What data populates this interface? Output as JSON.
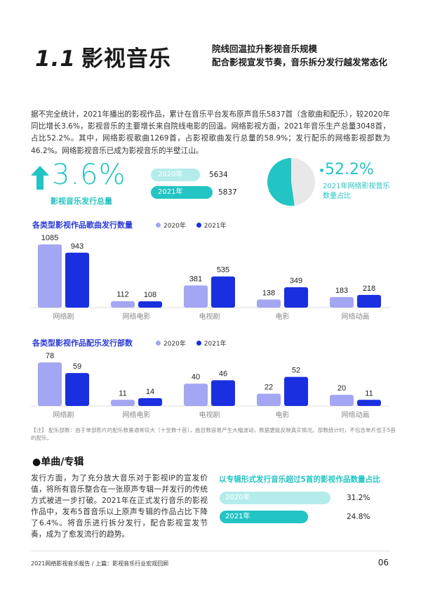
{
  "header": {
    "section_number": "1.1",
    "section_title": "影视音乐",
    "subtitle_line1": "院线回温拉升影视音乐规模",
    "subtitle_line2": "配合影视宣发节奏，音乐拆分发行越发常态化"
  },
  "intro": "据不完全统计，2021年播出的影视作品，累计在音乐平台发布原声音乐5837首（含歌曲和配乐），较2020年同比增长3.6%，影视音乐的主要增长来自院线电影的回温。网络影视方面，2021年音乐生产总量3048首，占比52.2%。其中，网络影视歌曲1269首，占影视歌曲发行总量的58.9%；发行配乐的网络影视部数为46.2%。网络影视音乐已成为影视音乐的半壁江山。",
  "highlight": {
    "growth_value": "3.6%",
    "growth_label": "影视音乐发行总量",
    "icon": "up-arrow-icon",
    "bars": [
      {
        "label": "2020年",
        "value": "5634",
        "amount": 5634
      },
      {
        "label": "2021年",
        "value": "5837",
        "amount": 5837
      }
    ],
    "pie_value": "52.2%",
    "pie_fraction": 0.522,
    "pie_label_line1": "2021年网络影视音乐",
    "pie_label_line2": "数量占比"
  },
  "colors": {
    "teal": "#22c4c4",
    "teal_light": "#b4ecec",
    "series_2020": "#a3a6f2",
    "series_2021": "#1a2fe0",
    "chart_title": "#2b3bd6"
  },
  "chart_data": [
    {
      "type": "bar",
      "title": "各类型影视作品歌曲发行数量",
      "categories": [
        "网络剧",
        "网络电影",
        "电视剧",
        "电影",
        "网络动画"
      ],
      "series": [
        {
          "name": "2020年",
          "values": [
            1085,
            112,
            381,
            138,
            183
          ]
        },
        {
          "name": "2021年",
          "values": [
            943,
            108,
            535,
            349,
            218
          ]
        }
      ],
      "legend_position": "top-right"
    },
    {
      "type": "bar",
      "title": "各类型影视作品配乐发行部数",
      "categories": [
        "网络剧",
        "网络电影",
        "电视剧",
        "电影",
        "网络动画"
      ],
      "series": [
        {
          "name": "2020年",
          "values": [
            78,
            11,
            40,
            22,
            20
          ]
        },
        {
          "name": "2021年",
          "values": [
            59,
            14,
            46,
            52,
            11
          ]
        }
      ],
      "legend_position": "top-right"
    }
  ],
  "note": "【注】 配乐部数：由于单部影片的配乐数量通常较大（十至数十首），曲目数容易产生大幅波动，数据更能反映真实情况。部数统计时，不包含单片低于5首的配乐。",
  "album": {
    "heading": "●单曲/专辑",
    "body": "发行方面，为了充分放大音乐对于影视IP的宣发价值，将所有音乐整合在一张原声专辑一并发行的传统方式被进一步打破。2021年在正式发行音乐的影视作品中，发布5首音乐以上原声专辑的作品占比下降了6.4%。将音乐进行拆分发行，配合影视宣发节奏，成为了愈发流行的趋势。",
    "chart_title": "以专辑形式发行音乐超过5首的影视作品数量占比",
    "bars": [
      {
        "label": "2020年",
        "value": "31.2%",
        "amount": 0.312
      },
      {
        "label": "2021年",
        "value": "24.8%",
        "amount": 0.248
      }
    ]
  },
  "footer": {
    "text": "2021网络影视音乐报告 / 上篇：影视音乐行业宏观回顾",
    "page": "06"
  }
}
